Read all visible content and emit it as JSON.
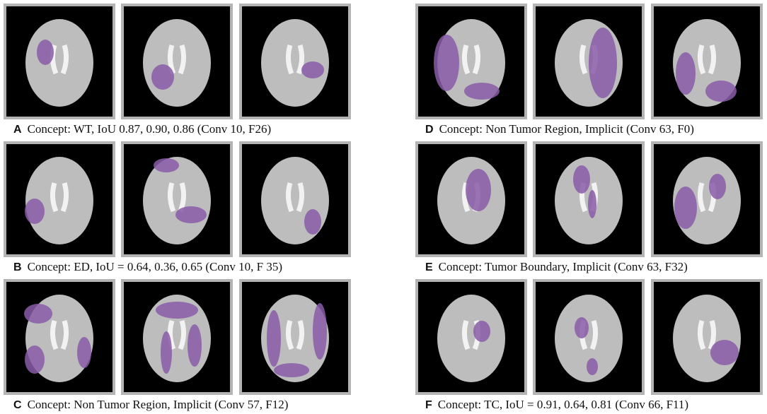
{
  "panels": [
    {
      "label": "A",
      "caption": "Concept: WT, IoU 0.87, 0.90, 0.86 (Conv 10, F26)"
    },
    {
      "label": "B",
      "caption": "Concept: ED, IoU = 0.64, 0.36, 0.65 (Conv 10, F 35)"
    },
    {
      "label": "C",
      "caption": "Concept: Non Tumor Region, Implicit (Conv 57, F12)"
    },
    {
      "label": "D",
      "caption": "Concept: Non Tumor Region, Implicit (Conv 63, F0)"
    },
    {
      "label": "E",
      "caption": "Concept: Tumor Boundary, Implicit (Conv 63, F32)"
    },
    {
      "label": "F",
      "caption": "Concept: TC, IoU = 0.91, 0.64, 0.81 (Conv 66, F11)"
    }
  ]
}
